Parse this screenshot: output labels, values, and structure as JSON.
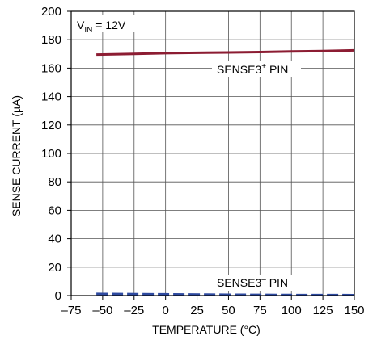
{
  "chart_data": {
    "type": "line",
    "title": "",
    "xlabel": "TEMPERATURE (°C)",
    "ylabel": "SENSE CURRENT (µA)",
    "xlim": [
      -75,
      150
    ],
    "ylim": [
      0,
      200
    ],
    "x_ticks": [
      -75,
      -50,
      -25,
      0,
      25,
      50,
      75,
      100,
      125,
      150
    ],
    "y_ticks": [
      0,
      20,
      40,
      60,
      80,
      100,
      120,
      140,
      160,
      180,
      200
    ],
    "x_tick_labels": [
      "–75",
      "–50",
      "–25",
      "0",
      "25",
      "50",
      "75",
      "100",
      "125",
      "150"
    ],
    "y_tick_labels": [
      "0",
      "20",
      "40",
      "60",
      "80",
      "100",
      "120",
      "140",
      "160",
      "180",
      "200"
    ],
    "grid": true,
    "series": [
      {
        "name": "SENSE3+ PIN",
        "style": "solid",
        "color": "#8c1c32",
        "x": [
          -55,
          -25,
          0,
          25,
          50,
          75,
          100,
          125,
          150
        ],
        "y": [
          169.5,
          170.0,
          170.5,
          170.8,
          171.0,
          171.3,
          171.7,
          172.0,
          172.5
        ]
      },
      {
        "name": "SENSE3– PIN",
        "style": "dashed",
        "color": "#2e4aa0",
        "x": [
          -55,
          0,
          50,
          100,
          150
        ],
        "y": [
          1.2,
          0.9,
          0.6,
          0.4,
          0.3
        ]
      }
    ],
    "annotations": {
      "vin": {
        "base": "V",
        "sub": "IN",
        "rest": " = 12V"
      },
      "sense_plus": {
        "base": "SENSE3",
        "sup": "+",
        "rest": " PIN"
      },
      "sense_minus": {
        "base": "SENSE3",
        "sup": "–",
        "rest": " PIN"
      }
    }
  }
}
